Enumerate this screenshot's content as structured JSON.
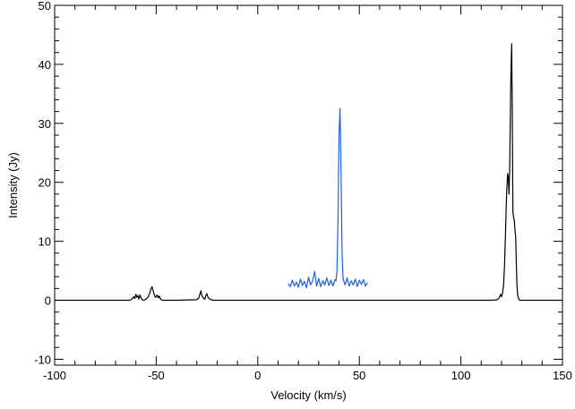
{
  "chart_data": {
    "type": "line",
    "xlabel": "Velocity (km/s)",
    "ylabel": "Intensity (Jy)",
    "xlim": [
      -100,
      150
    ],
    "ylim": [
      -11,
      50
    ],
    "x_ticks": [
      -100,
      -50,
      0,
      50,
      100,
      150
    ],
    "y_ticks": [
      -10,
      0,
      10,
      20,
      30,
      40,
      50
    ],
    "grid": false,
    "legend": "none",
    "series": [
      {
        "color": "#000000",
        "x": [
          -100,
          -63,
          -62,
          -61,
          -60.5,
          -60,
          -59.5,
          -59,
          -58.5,
          -58,
          -57,
          -56,
          -55,
          -54,
          -53,
          -52.5,
          -52,
          -51.5,
          -51,
          -50.5,
          -50,
          -49.5,
          -49,
          -48.5,
          -48,
          -47.5,
          -47,
          -46,
          -40,
          -30,
          -29,
          -28,
          -27.5,
          -27,
          -26.5,
          -26,
          -25.5,
          -25,
          -24.5,
          -24,
          -23.5,
          -23,
          -22,
          -10,
          0,
          20,
          40,
          60,
          80,
          100,
          115,
          118,
          119,
          119.5,
          120,
          120.5,
          121,
          121.5,
          122,
          122.5,
          123,
          123.3,
          123.7,
          124,
          124.3,
          124.6,
          125,
          125.3,
          125.6,
          126,
          126.3,
          126.6,
          127,
          127.3,
          127.6,
          128,
          128.5,
          129,
          130,
          135,
          150
        ],
        "y": [
          0,
          0,
          0.2,
          0.6,
          0.3,
          1.0,
          0.5,
          0.8,
          0.2,
          0.9,
          0.1,
          0.0,
          0.2,
          0.5,
          1.4,
          2.0,
          2.3,
          1.6,
          1.0,
          0.5,
          0.6,
          0.9,
          0.4,
          0.7,
          0.3,
          0.1,
          0.0,
          0.0,
          0.0,
          0.1,
          0.4,
          1.6,
          0.8,
          0.5,
          0.3,
          0.2,
          0.9,
          1.1,
          0.5,
          0.3,
          0.2,
          0.1,
          0.0,
          0.0,
          0.0,
          0.0,
          0.0,
          0.0,
          0.0,
          0.0,
          0.0,
          0.1,
          0.5,
          1.0,
          0.6,
          1.2,
          2.5,
          6.0,
          12.0,
          18.0,
          21.5,
          21.0,
          18.0,
          22.0,
          30.0,
          38.0,
          43.5,
          32.0,
          15.0,
          14.0,
          13.5,
          12.0,
          10.5,
          6.0,
          2.5,
          0.8,
          0.2,
          0.0,
          0.0,
          0.0,
          0.0
        ]
      },
      {
        "color": "#1f5fe0",
        "x": [
          15,
          16,
          17,
          18,
          19,
          20,
          21,
          22,
          23,
          24,
          25,
          26,
          27,
          28,
          29,
          30,
          31,
          32,
          33,
          34,
          35,
          36,
          37,
          38,
          38.5,
          39,
          39.5,
          40,
          40.5,
          41,
          41.5,
          42,
          43,
          44,
          45,
          46,
          47,
          48,
          49,
          50,
          51,
          52,
          53,
          54
        ],
        "y": [
          2.8,
          2.3,
          3.4,
          2.4,
          3.1,
          2.2,
          3.6,
          2.5,
          3.2,
          2.1,
          3.9,
          2.6,
          3.3,
          4.9,
          2.4,
          3.7,
          2.3,
          3.3,
          2.6,
          3.8,
          2.5,
          3.4,
          2.4,
          3.5,
          3.3,
          5.0,
          14.0,
          28.0,
          32.5,
          22.0,
          8.0,
          3.6,
          2.6,
          3.8,
          2.4,
          3.3,
          2.6,
          3.6,
          2.3,
          3.4,
          2.7,
          3.5,
          2.4,
          3.0
        ]
      }
    ]
  }
}
